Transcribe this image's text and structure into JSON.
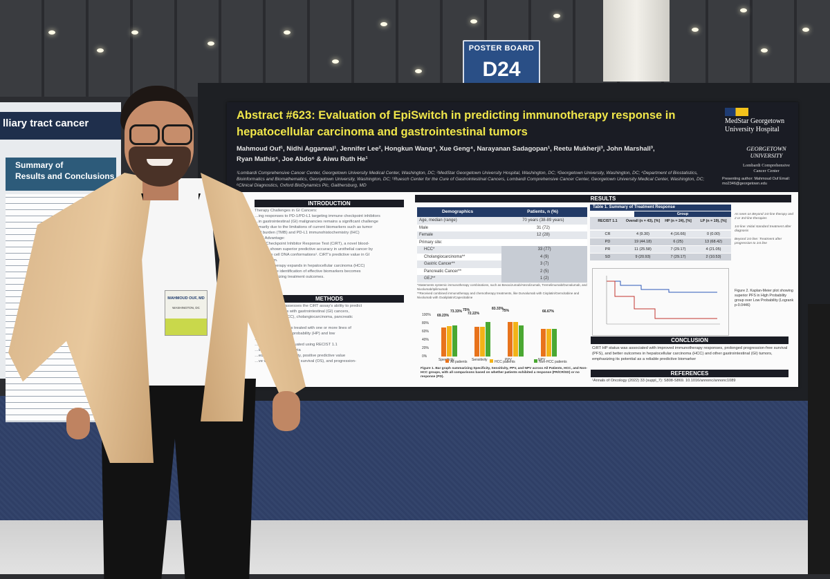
{
  "sign": {
    "top": "POSTER BOARD",
    "code": "D24"
  },
  "left_poster": {
    "title": "lliary tract cancer",
    "summary_line1": "Summary of",
    "summary_line2": "Results and Conclusions"
  },
  "poster": {
    "title_line1": "Abstract #623: Evaluation of EpiSwitch in predicting immunotherapy response in",
    "title_line2": "hepatocellular carcinoma and gastrointestinal tumors",
    "authors_line1": "Mahmoud Ouf¹, Nidhi Aggarwal¹, Jennifer Lee², Hongkun Wang⁴, Xue Geng⁴, Narayanan Sadagopan¹, Reetu Mukherji³, John Marshall³,",
    "authors_line2": "Ryan Mathis⁶, Joe Abdo⁶ & Aiwu Ruth He¹",
    "affiliations": "¹Lombardi Comprehensive Cancer Center, Georgetown University Medical Center, Washington, DC; ²MedStar Georgetown University Hospital, Washington, DC; ³Georgetown University, Washington, DC; ⁴Department of Biostatistics, Bioinformatics and Biomathematics, Georgetown University, Washington, DC; ⁵Ruesch Center for the Cure of Gastrointestinal Cancers, Lombardi Comprehensive Cancer Center, Georgetown University Medical Center, Washington, DC; ⁶Clinical Diagnostics, Oxford BioDynamics Plc, Gaithersburg, MD",
    "logo_medstar": "MedStar Georgetown University Hospital",
    "logo_gu": "GEORGETOWN UNIVERSITY",
    "logo_lombardi": "Lombardi Comprehensive Cancer Center",
    "presenter": "Presenting author: Mahmoud Ouf Email: mo2346@georgetown.edu",
    "sections": {
      "introduction": "INTRODUCTION",
      "methods": "METHODS",
      "results": "RESULTS",
      "conclusion": "CONCLUSION",
      "references": "REFERENCES"
    },
    "intro_lines": [
      "Therapy Challenges in GI Cancers:",
      "…ing responses to PD-1/PD-L1 targeting immune checkpoint inhibitors",
      "…in gastrointestinal (GI) malignancies remains a significant challenge",
      "…marily due to the limitations of current biomarkers such as tumor",
      "…al burden (TMB) and PD-L1 immunohistochemistry (IHC)",
      "…RT Advantage:",
      "…itch Checkpoint Inhibitor Response Test (CiRT), a novel blood-",
      "…y, has shown superior predictive accuracy in urothelial cancer by",
      "…immune cell DNA conformations¹. CiRT's predictive value in GI",
      "…yet known.",
      "…immunotherapy expands in hepatocellular carcinoma (HCC)",
      "…tumors, the identification of effective biomarkers becomes",
      "…al for optimizing treatment outcomes."
    ],
    "method_lines": [
      "…sis: This study assesses the CiRT assay's ability to predict",
      "…onses in patients with gastrointestinal (GI) cancers,",
      "…ar carcinoma (HCC), cholangiocarcinoma, pancreatic",
      "…gastric cancer.",
      "…ers with GI cancers treated with one or more lines of",
      "…classified into high probability (HP) and low",
      "…groups.",
      "…outcomes were evaluated using RECIST 1.1",
      "…in Solid Tumors) criteria",
      "…ed sensitivity, specificity, positive predictive value",
      "…ve value (NPV), overall survival (OS), and progression-"
    ],
    "demographics": {
      "headers": [
        "Demographics",
        "Patients, n (%)"
      ],
      "rows": [
        [
          "Age, median (range)",
          "70 years (38-89 years)"
        ],
        [
          "Male",
          "31 (72)"
        ],
        [
          "Female",
          "12 (28)"
        ],
        [
          "Primary site:",
          ""
        ],
        [
          "HCC*",
          "33 (77)"
        ],
        [
          "Cholangiocarcinoma**",
          "4 (9)"
        ],
        [
          "Gastric Cancer**",
          "3 (7)"
        ],
        [
          "Pancreatic Cancer**",
          "2 (5)"
        ],
        [
          "GEJ**",
          "1 (2)"
        ]
      ],
      "footnote1": "*Statements systemic immunotherapy combinations, such as Bevacizumab/Atezolizumab, Tremelimumab/Durvalumab, and Nivolumab/Ipilimumab",
      "footnote2": "**Received combined immunotherapy and chemotherapy treatments, like Durvalumab with Cisplatin/Gemcitabine and Nivolumab with Oxaliplatin/Capecitabine"
    },
    "chart_data": {
      "type": "bar",
      "categories": [
        "Specificity",
        "Sensitivity",
        "PPV",
        "NPV"
      ],
      "series": [
        {
          "name": "All patients",
          "values": [
            69.23,
            72.22,
            83.33,
            66.67
          ],
          "color": "#e8731c"
        },
        {
          "name": "HCC patients",
          "values": [
            73.33,
            72.22,
            83.33,
            66.67
          ],
          "color": "#f2b318"
        },
        {
          "name": "Non-HCC patients",
          "values": [
            75,
            83.33,
            75,
            66.67
          ],
          "color": "#4aa832"
        }
      ],
      "data_labels": [
        "69.23%",
        "73.33%",
        "75%",
        "72.22%",
        "83.33%",
        "75%",
        "66.67%"
      ],
      "ytick_labels": [
        "100%",
        "80%",
        "60%",
        "40%",
        "20%",
        "0%"
      ],
      "ylim": [
        0,
        100
      ],
      "caption": "Figure 1. Bar graph summarizing Specificity, Sensitivity, PPV, and NPV across All Patients, HCC, and Non-HCC groups, with all comparisons based on whether patients exhibited a response (PR/CR/SD) or no response (PD)."
    },
    "table1": {
      "title": "Table 1. Summary of Treatment Response",
      "group_header": "Group",
      "headers": [
        "RECIST 1.1",
        "Overall (n = 43), [%]",
        "HP (n = 24), [%]",
        "LP (n = 19), [%]"
      ],
      "rows": [
        [
          "CR",
          "4 (9.30)",
          "4 (16.66)",
          "0 (0.00)"
        ],
        [
          "PD",
          "19 (44.18)",
          "6 (25)",
          "13 (68.42)"
        ],
        [
          "PR",
          "11 (25.58)",
          "7 (29.17)",
          "4 (21.05)"
        ],
        [
          "SD",
          "9 (20.93)",
          "7 (29.17)",
          "2 (10.53)"
        ]
      ]
    },
    "side_notes": [
      "As seen on Beyond 1st-line therapy and 2 or 3rd-line therapies",
      "1st-line: Initial standard treatment after diagnosis",
      "Beyond 1st-line: Treatment after progression to 1st line"
    ],
    "km_caption": "Figure 2. Kaplan-Meier plot showing superior PFS in High Probability group over Low Probability (Logrank p-0.0446)",
    "conclusion_text": "CiRT HP status was associated with improved immunotherapy responses, prolonged progression-free survival (PFS), and better outcomes in hepatocellular carcinoma (HCC) and other gastrointestinal (GI) tumors, emphasizing its potential as a reliable predictive biomarker",
    "reference_text": "¹Annals of Oncology (2022) 33 (suppl_7): S808-S869. 10.1016/annonc/annonc1089"
  },
  "badge": {
    "name": "MAHMOUD OUF, MD",
    "city": "WASHINGTON, DC"
  }
}
